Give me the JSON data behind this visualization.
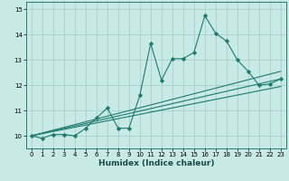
{
  "title": "",
  "xlabel": "Humidex (Indice chaleur)",
  "bg_color": "#c8eae5",
  "grid_color": "#a0ccc6",
  "line_color": "#1e7a6e",
  "xlim": [
    -0.5,
    23.5
  ],
  "ylim": [
    9.5,
    15.3
  ],
  "xticks": [
    0,
    1,
    2,
    3,
    4,
    5,
    6,
    7,
    8,
    9,
    10,
    11,
    12,
    13,
    14,
    15,
    16,
    17,
    18,
    19,
    20,
    21,
    22,
    23
  ],
  "yticks": [
    10,
    11,
    12,
    13,
    14,
    15
  ],
  "line1_x": [
    0,
    1,
    2,
    3,
    4,
    5,
    6,
    7,
    8,
    9,
    10,
    11,
    12,
    13,
    14,
    15,
    16,
    17,
    18,
    19,
    20,
    21,
    22,
    23
  ],
  "line1_y": [
    10.0,
    9.9,
    10.05,
    10.05,
    10.0,
    10.3,
    10.7,
    11.1,
    10.3,
    10.3,
    11.6,
    13.65,
    12.2,
    13.05,
    13.05,
    13.3,
    14.75,
    14.05,
    13.75,
    13.0,
    12.55,
    12.0,
    12.05,
    12.25
  ],
  "line2_x": [
    0,
    23
  ],
  "line2_y": [
    10.0,
    12.25
  ],
  "line3_x": [
    0,
    23
  ],
  "line3_y": [
    10.0,
    11.95
  ],
  "line4_x": [
    0,
    23
  ],
  "line4_y": [
    10.0,
    12.55
  ]
}
